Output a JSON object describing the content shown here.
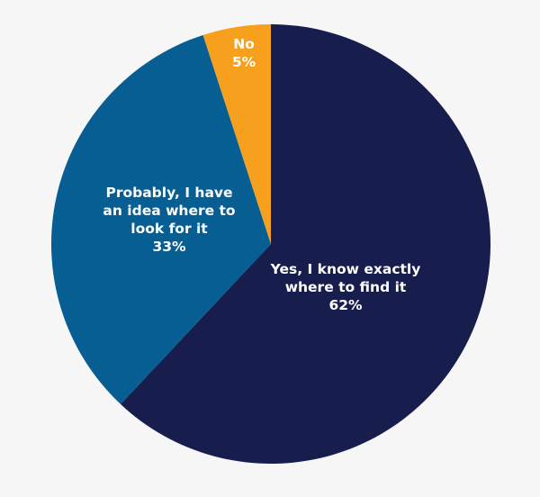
{
  "chart_data": {
    "type": "pie",
    "start": "top",
    "direction": "clockwise",
    "slices": [
      {
        "label_lines": [
          "Yes, I know exactly",
          "where to find it"
        ],
        "value": 62,
        "value_text": "62%",
        "color": "#171d4d"
      },
      {
        "label_lines": [
          "Probably, I have",
          "an idea where to",
          "look for it"
        ],
        "value": 33,
        "value_text": "33%",
        "color": "#075e92"
      },
      {
        "label_lines": [
          "No"
        ],
        "value": 5,
        "value_text": "5%",
        "color": "#f7a01e"
      }
    ]
  }
}
